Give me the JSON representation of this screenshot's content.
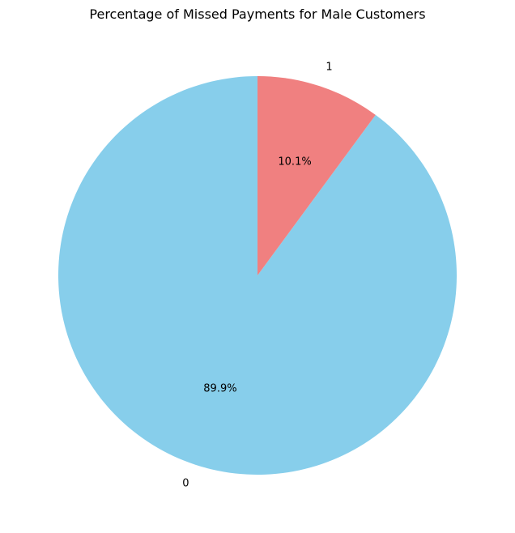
{
  "chart_data": {
    "type": "pie",
    "title": "Percentage of Missed Payments for Male Customers",
    "slices": [
      {
        "label": "0",
        "percent": 89.9,
        "pct_label": "89.9%",
        "color": "#87CEEB"
      },
      {
        "label": "1",
        "percent": 10.1,
        "pct_label": "10.1%",
        "color": "#F08080"
      }
    ],
    "start_angle_deg": 90,
    "direction": "counterclockwise"
  }
}
